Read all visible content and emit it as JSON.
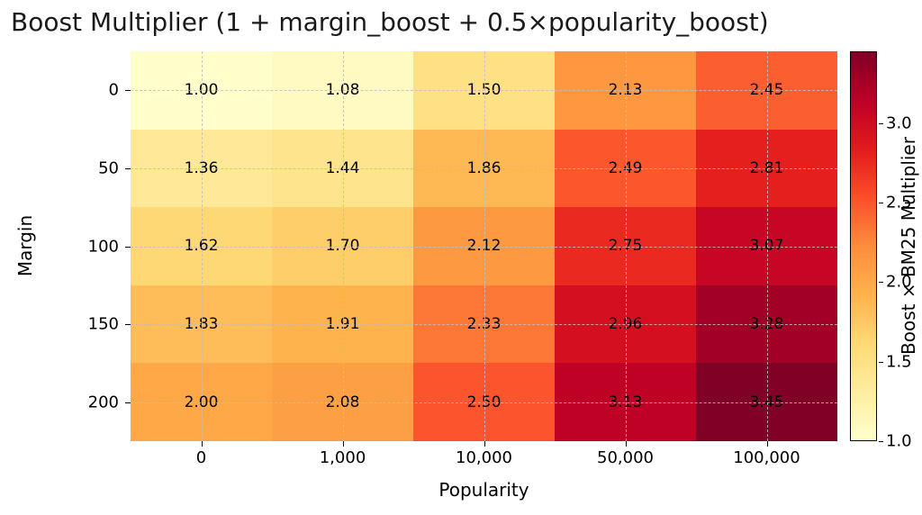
{
  "chart_data": {
    "type": "heatmap",
    "title": "Boost Multiplier (1 + margin_boost + 0.5×popularity_boost)",
    "xlabel": "Popularity",
    "ylabel": "Margin",
    "x_ticklabels": [
      "0",
      "1,000",
      "10,000",
      "50,000",
      "100,000"
    ],
    "y_ticklabels": [
      "0",
      "50",
      "100",
      "150",
      "200"
    ],
    "values": [
      [
        1.0,
        1.08,
        1.5,
        2.13,
        2.45
      ],
      [
        1.36,
        1.44,
        1.86,
        2.49,
        2.81
      ],
      [
        1.62,
        1.7,
        2.12,
        2.75,
        3.07
      ],
      [
        1.83,
        1.91,
        2.33,
        2.96,
        3.28
      ],
      [
        2.0,
        2.08,
        2.5,
        3.13,
        3.45
      ]
    ],
    "value_decimals": 2,
    "vmin": 1.0,
    "vmax": 3.45,
    "grid": true,
    "grid_style": "dashed",
    "grid_color": "#bebebe",
    "colormap": "YlOrRd",
    "colormap_stops": [
      {
        "t": 0.0,
        "color": "#ffffcc"
      },
      {
        "t": 0.125,
        "color": "#ffeda0"
      },
      {
        "t": 0.25,
        "color": "#fed976"
      },
      {
        "t": 0.375,
        "color": "#feb24c"
      },
      {
        "t": 0.5,
        "color": "#fd8d3c"
      },
      {
        "t": 0.625,
        "color": "#fc4e2a"
      },
      {
        "t": 0.75,
        "color": "#e31a1c"
      },
      {
        "t": 0.875,
        "color": "#bd0026"
      },
      {
        "t": 1.0,
        "color": "#800026"
      }
    ],
    "colorbar": {
      "label": "Boost × BM25 Multiplier",
      "ticks": [
        1.0,
        1.5,
        2.0,
        2.5,
        3.0
      ],
      "tick_decimals": 1
    },
    "text_color": "#000000"
  }
}
